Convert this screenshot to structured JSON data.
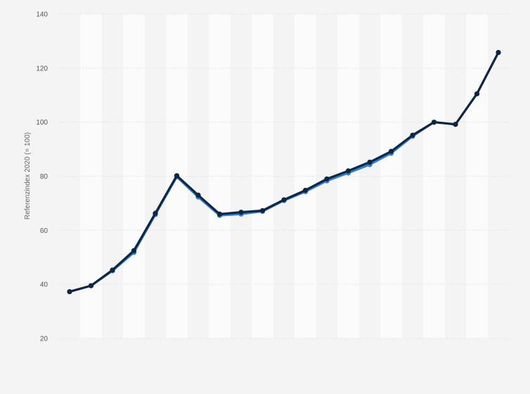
{
  "chart_data": {
    "type": "line",
    "ylabel": "Referenzindex 2020 (= 100)",
    "ylim": [
      20,
      140
    ],
    "yticks": [
      20,
      40,
      60,
      80,
      100,
      120,
      140
    ],
    "grid": true,
    "x_count": 21,
    "series": [
      {
        "color": "#2d7fd6",
        "values": [
          37.3,
          39.5,
          45.0,
          51.8,
          65.8,
          79.8,
          72.3,
          65.5,
          66.0,
          67.0,
          71.0,
          74.3,
          78.3,
          81.2,
          84.3,
          88.5,
          94.8,
          100.0,
          99.2,
          110.5,
          125.8
        ]
      },
      {
        "color": "#0f2540",
        "values": [
          37.3,
          39.5,
          45.3,
          52.5,
          66.3,
          80.2,
          73.0,
          66.0,
          66.7,
          67.3,
          71.3,
          74.8,
          79.0,
          82.0,
          85.2,
          89.2,
          95.2,
          100.0,
          99.2,
          110.5,
          125.8
        ]
      }
    ]
  }
}
